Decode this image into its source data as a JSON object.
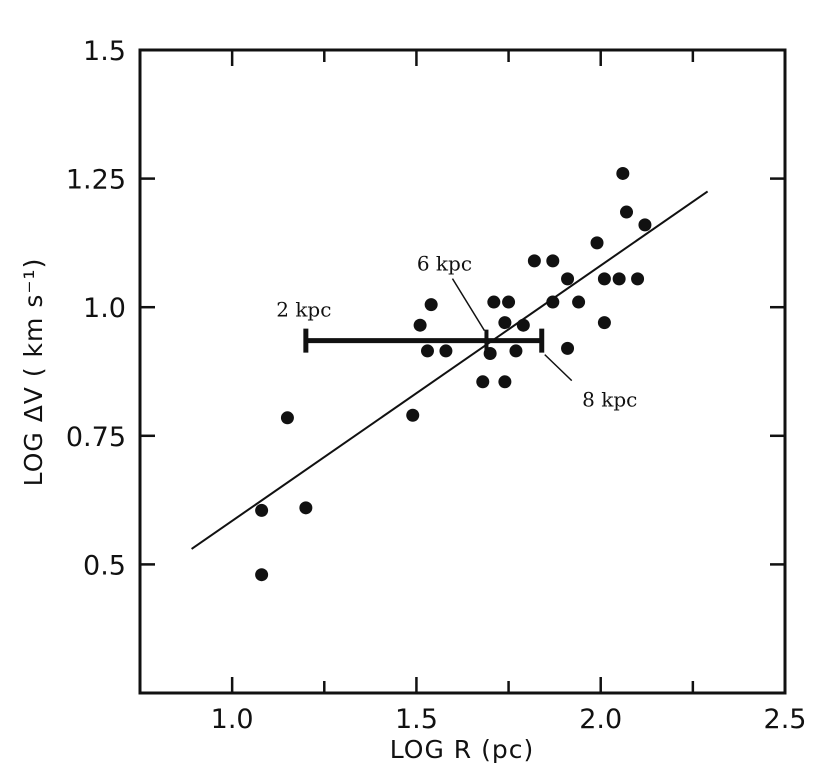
{
  "chart_data": {
    "type": "scatter",
    "title": "",
    "xlabel": "LOG R (pc)",
    "ylabel": "LOG ΔV ( km s⁻¹)",
    "xlim": [
      0.75,
      2.5
    ],
    "ylim": [
      0.25,
      1.5
    ],
    "x_ticks": [
      1.0,
      1.5,
      2.0,
      2.5
    ],
    "x_tick_labels": [
      "1.0",
      "1.5",
      "2.0",
      "2.5"
    ],
    "y_ticks": [
      0.5,
      0.75,
      1.0,
      1.25,
      1.5
    ],
    "y_tick_labels": [
      "0.5",
      "0.75",
      "1.0",
      "1.25",
      "1.5"
    ],
    "grid": false,
    "points": [
      {
        "x": 1.08,
        "y": 0.48
      },
      {
        "x": 1.08,
        "y": 0.605
      },
      {
        "x": 1.15,
        "y": 0.785
      },
      {
        "x": 1.2,
        "y": 0.61
      },
      {
        "x": 1.49,
        "y": 0.79
      },
      {
        "x": 1.51,
        "y": 0.965
      },
      {
        "x": 1.54,
        "y": 1.005
      },
      {
        "x": 1.53,
        "y": 0.915
      },
      {
        "x": 1.58,
        "y": 0.915
      },
      {
        "x": 1.68,
        "y": 0.855
      },
      {
        "x": 1.7,
        "y": 0.91
      },
      {
        "x": 1.71,
        "y": 1.01
      },
      {
        "x": 1.74,
        "y": 0.855
      },
      {
        "x": 1.75,
        "y": 1.01
      },
      {
        "x": 1.74,
        "y": 0.97
      },
      {
        "x": 1.77,
        "y": 0.915
      },
      {
        "x": 1.79,
        "y": 0.965
      },
      {
        "x": 1.82,
        "y": 1.09
      },
      {
        "x": 1.87,
        "y": 1.09
      },
      {
        "x": 1.87,
        "y": 1.01
      },
      {
        "x": 1.91,
        "y": 1.055
      },
      {
        "x": 1.91,
        "y": 0.92
      },
      {
        "x": 1.94,
        "y": 1.01
      },
      {
        "x": 1.99,
        "y": 1.125
      },
      {
        "x": 2.01,
        "y": 1.055
      },
      {
        "x": 2.01,
        "y": 0.97
      },
      {
        "x": 2.05,
        "y": 1.055
      },
      {
        "x": 2.06,
        "y": 1.26
      },
      {
        "x": 2.07,
        "y": 1.185
      },
      {
        "x": 2.1,
        "y": 1.055
      },
      {
        "x": 2.12,
        "y": 1.16
      }
    ],
    "fit_line": {
      "x": [
        0.89,
        2.29
      ],
      "y": [
        0.53,
        1.225
      ]
    },
    "distance_bar": {
      "x_start": 1.2,
      "x_end": 1.84,
      "x_mark": 1.69,
      "y": 0.935
    },
    "annotations": [
      {
        "text": "2 kpc",
        "x": 1.2,
        "y": 0.935
      },
      {
        "text": "6 kpc",
        "x": 1.69,
        "y": 0.935
      },
      {
        "text": "8 kpc",
        "x": 1.84,
        "y": 0.935
      }
    ]
  }
}
